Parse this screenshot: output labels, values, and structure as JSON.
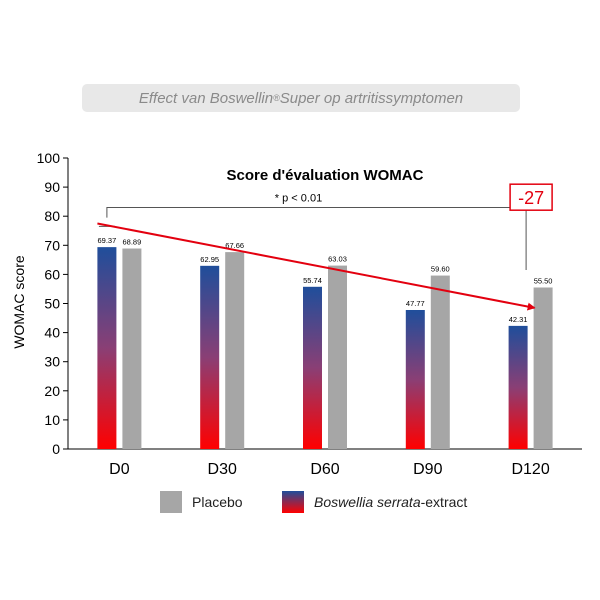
{
  "banner": {
    "prefix": "Effect van Boswellin",
    "reg": "®",
    "suffix": "Super op artritissymptomen"
  },
  "chart_data": {
    "type": "bar",
    "title": "Score d'évaluation WOMAC",
    "ylabel": "WOMAC score",
    "xlabel": "",
    "ylim": [
      0,
      100
    ],
    "yticks": [
      0,
      10,
      20,
      30,
      40,
      50,
      60,
      70,
      80,
      90,
      100
    ],
    "categories": [
      "D0",
      "D30",
      "D60",
      "D90",
      "D120"
    ],
    "series": [
      {
        "name": "Boswellia serrata-extract",
        "values": [
          69.37,
          62.95,
          55.74,
          47.77,
          42.31
        ],
        "labels": [
          "69.37",
          "62.95",
          "55.74",
          "47.77",
          "42.31"
        ],
        "color_top": "#1f4e9b",
        "color_bottom": "#ff0000"
      },
      {
        "name": "Placebo",
        "values": [
          68.89,
          67.66,
          63.03,
          59.6,
          55.5
        ],
        "labels": [
          "68.89",
          "67.66",
          "63.03",
          "59.60",
          "55.50"
        ],
        "color": "#a6a6a6"
      }
    ],
    "significance": {
      "text": "* p < 0.01",
      "from": "D0",
      "to": "D120"
    },
    "trend_arrow": {
      "from": [
        "D0",
        77.5
      ],
      "to": [
        "D120",
        48.5
      ],
      "color": "#e3000f"
    },
    "reduction_badge": {
      "text": "-27",
      "color": "#e3000f"
    },
    "grid": false,
    "legend_position": "bottom"
  },
  "legend": {
    "placebo_label": "Placebo",
    "boswellia_italic": "Boswellia serrata",
    "boswellia_suffix": "-extract"
  }
}
